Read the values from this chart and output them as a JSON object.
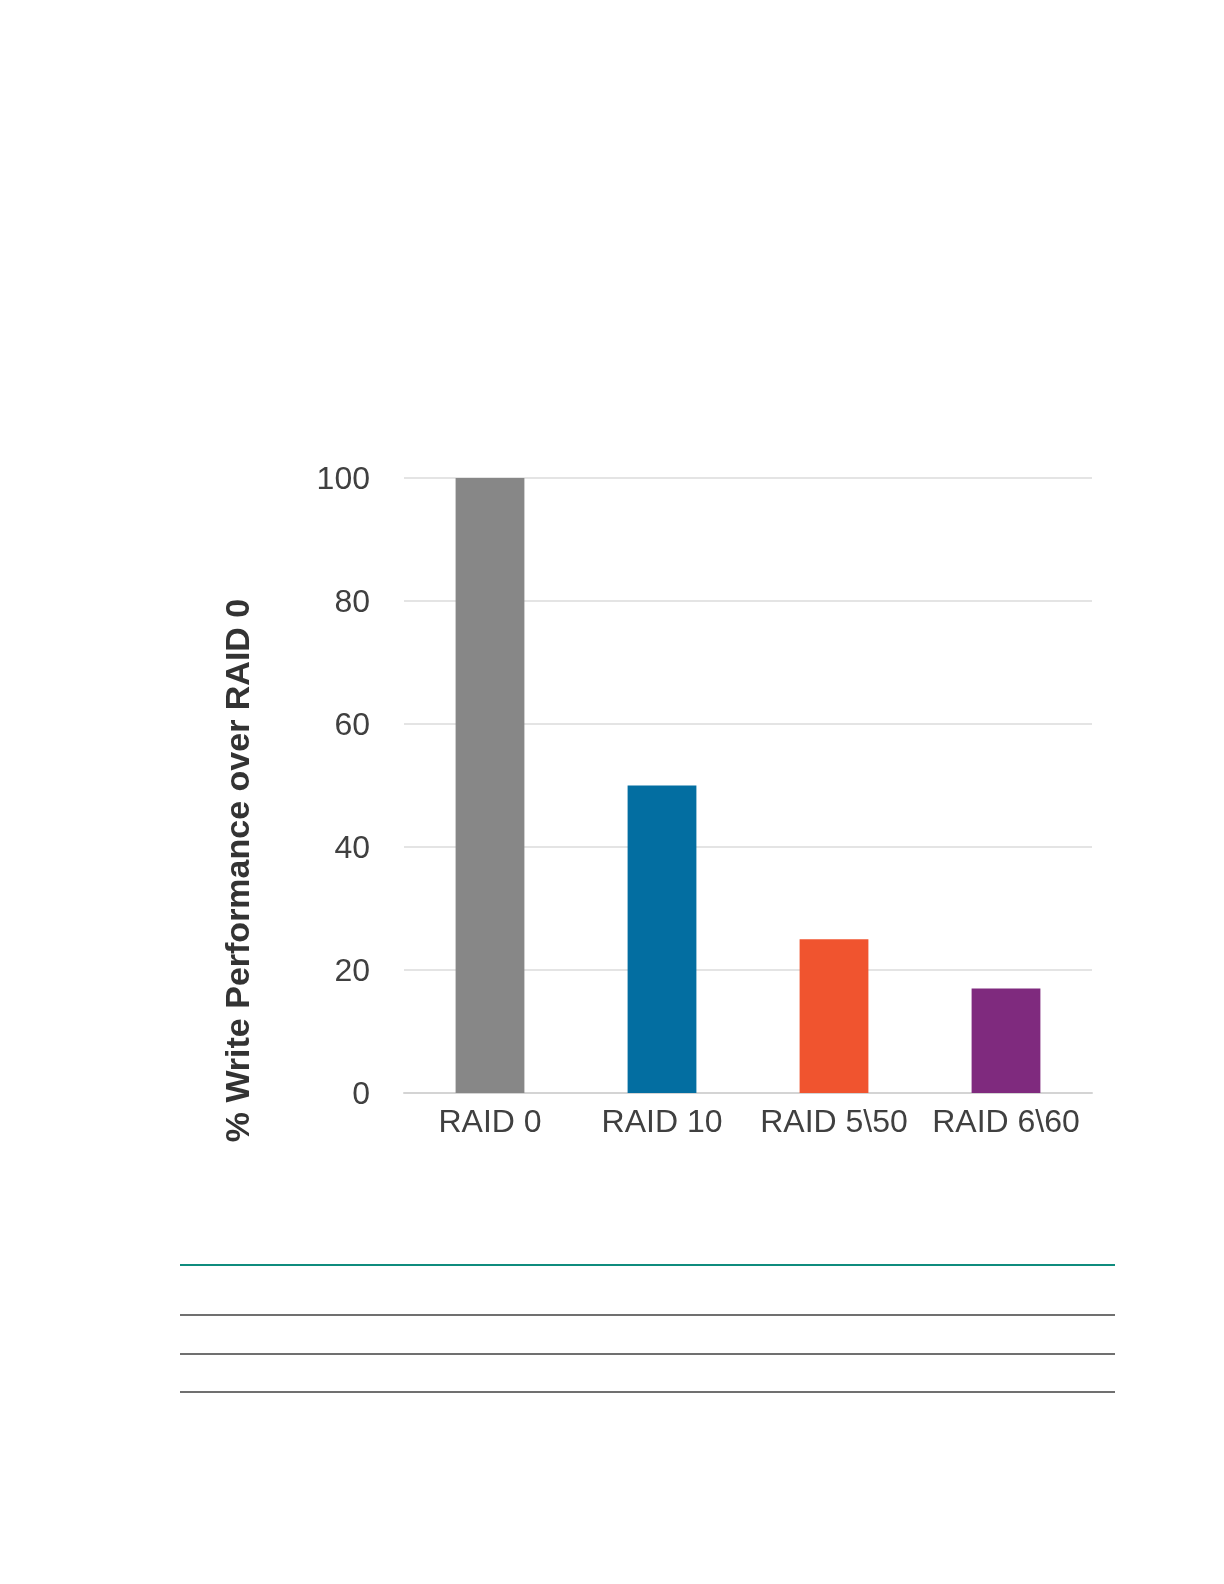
{
  "chart_data": {
    "type": "bar",
    "ylabel": "% Write Performance over RAID 0",
    "categories": [
      "RAID 0",
      "RAID 10",
      "RAID 5\\50",
      "RAID 6\\60"
    ],
    "values": [
      100,
      50,
      25,
      17
    ],
    "colors": [
      "#878787",
      "#036ea1",
      "#f0542f",
      "#7f2a7e"
    ],
    "ylim": [
      0,
      100
    ],
    "yticks": [
      0,
      20,
      40,
      60,
      80,
      100
    ],
    "grid": "y"
  }
}
